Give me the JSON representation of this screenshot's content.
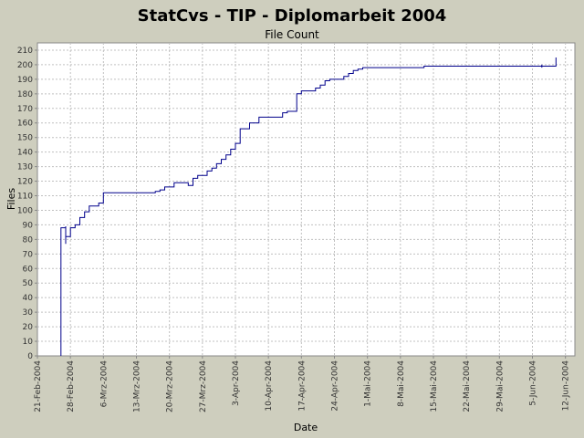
{
  "chart_data": {
    "type": "line",
    "title": "StatCvs - TIP - Diplomarbeit 2004",
    "subtitle": "File Count",
    "xlabel": "Date",
    "ylabel": "Files",
    "grid": true,
    "xlim": [
      "2004-02-21",
      "2004-06-14"
    ],
    "ylim": [
      0,
      215
    ],
    "y_ticks": [
      0,
      10,
      20,
      30,
      40,
      50,
      60,
      70,
      80,
      90,
      100,
      110,
      120,
      130,
      140,
      150,
      160,
      170,
      180,
      190,
      200,
      210
    ],
    "x_ticks": [
      {
        "date": "2004-02-21",
        "label": "21-Feb-2004"
      },
      {
        "date": "2004-02-28",
        "label": "28-Feb-2004"
      },
      {
        "date": "2004-03-06",
        "label": "6-Mrz-2004"
      },
      {
        "date": "2004-03-13",
        "label": "13-Mrz-2004"
      },
      {
        "date": "2004-03-20",
        "label": "20-Mrz-2004"
      },
      {
        "date": "2004-03-27",
        "label": "27-Mrz-2004"
      },
      {
        "date": "2004-04-03",
        "label": "3-Apr-2004"
      },
      {
        "date": "2004-04-10",
        "label": "10-Apr-2004"
      },
      {
        "date": "2004-04-17",
        "label": "17-Apr-2004"
      },
      {
        "date": "2004-04-24",
        "label": "24-Apr-2004"
      },
      {
        "date": "2004-05-01",
        "label": "1-Mai-2004"
      },
      {
        "date": "2004-05-08",
        "label": "8-Mai-2004"
      },
      {
        "date": "2004-05-15",
        "label": "15-Mai-2004"
      },
      {
        "date": "2004-05-22",
        "label": "22-Mai-2004"
      },
      {
        "date": "2004-05-29",
        "label": "29-Mai-2004"
      },
      {
        "date": "2004-06-05",
        "label": "5-Jun-2004"
      },
      {
        "date": "2004-06-12",
        "label": "12-Jun-2004"
      }
    ],
    "series": [
      {
        "color": "#00008b",
        "x": [
          "2004-02-26",
          "2004-02-26",
          "2004-02-27",
          "2004-02-27",
          "2004-02-27",
          "2004-02-27",
          "2004-02-27",
          "2004-02-27",
          "2004-02-28",
          "2004-02-28",
          "2004-02-28",
          "2004-02-29",
          "2004-02-29",
          "2004-03-01",
          "2004-03-01",
          "2004-03-02",
          "2004-03-02",
          "2004-03-02",
          "2004-03-03",
          "2004-03-03",
          "2004-03-03",
          "2004-03-05",
          "2004-03-05",
          "2004-03-06",
          "2004-03-06",
          "2004-03-17",
          "2004-03-17",
          "2004-03-18",
          "2004-03-18",
          "2004-03-19",
          "2004-03-19",
          "2004-03-21",
          "2004-03-21",
          "2004-03-24",
          "2004-03-24",
          "2004-03-25",
          "2004-03-25",
          "2004-03-26",
          "2004-03-26",
          "2004-03-28",
          "2004-03-28",
          "2004-03-29",
          "2004-03-29",
          "2004-03-30",
          "2004-03-30",
          "2004-03-31",
          "2004-03-31",
          "2004-04-01",
          "2004-04-01",
          "2004-04-02",
          "2004-04-02",
          "2004-04-03",
          "2004-04-03",
          "2004-04-04",
          "2004-04-04",
          "2004-04-06",
          "2004-04-06",
          "2004-04-08",
          "2004-04-08",
          "2004-04-13",
          "2004-04-13",
          "2004-04-14",
          "2004-04-14",
          "2004-04-16",
          "2004-04-16",
          "2004-04-17",
          "2004-04-17",
          "2004-04-20",
          "2004-04-20",
          "2004-04-21",
          "2004-04-21",
          "2004-04-22",
          "2004-04-22",
          "2004-04-23",
          "2004-04-23",
          "2004-04-26",
          "2004-04-26",
          "2004-04-27",
          "2004-04-27",
          "2004-04-28",
          "2004-04-28",
          "2004-04-29",
          "2004-04-29",
          "2004-04-30",
          "2004-04-30",
          "2004-05-13",
          "2004-05-13",
          "2004-06-07",
          "2004-06-07",
          "2004-06-07",
          "2004-06-07",
          "2004-06-10",
          "2004-06-10"
        ],
        "y": [
          0,
          88,
          88,
          89,
          89,
          77,
          81,
          82,
          82,
          88,
          88,
          88,
          90,
          90,
          95,
          95,
          97,
          99,
          99,
          103,
          103,
          103,
          105,
          105,
          112,
          112,
          113,
          113,
          114,
          114,
          116,
          116,
          119,
          119,
          117,
          117,
          122,
          122,
          124,
          124,
          127,
          127,
          129,
          129,
          132,
          132,
          135,
          135,
          138,
          138,
          142,
          142,
          146,
          146,
          156,
          156,
          160,
          160,
          164,
          164,
          167,
          167,
          168,
          168,
          180,
          180,
          182,
          182,
          184,
          184,
          186,
          186,
          189,
          189,
          190,
          190,
          192,
          192,
          194,
          194,
          196,
          196,
          197,
          197,
          198,
          198,
          199,
          199,
          200,
          198,
          199,
          199,
          205
        ]
      }
    ]
  }
}
